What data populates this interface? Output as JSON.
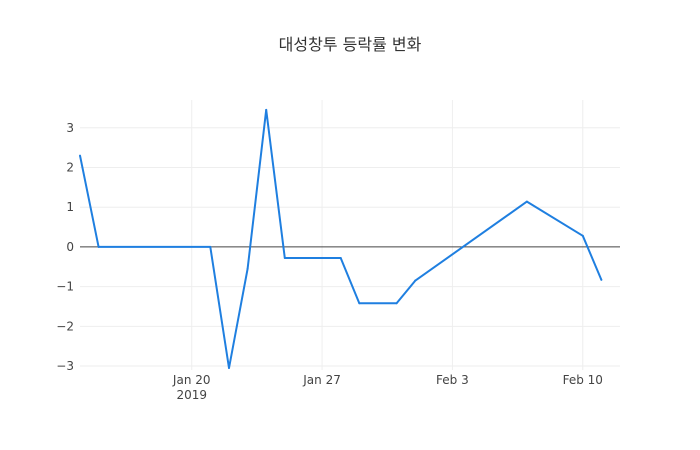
{
  "chart_data": {
    "type": "line",
    "title": "대성창투 등락률 변화",
    "xlabel": "",
    "ylabel": "",
    "xlim": [
      "2019-01-14",
      "2019-02-12"
    ],
    "ylim": [
      -3.1,
      3.7
    ],
    "grid": true,
    "zero_line": true,
    "x_ticks": [
      {
        "date": "2019-01-20",
        "label": "Jan 20",
        "sublabel": "2019"
      },
      {
        "date": "2019-01-27",
        "label": "Jan 27",
        "sublabel": ""
      },
      {
        "date": "2019-02-03",
        "label": "Feb 3",
        "sublabel": ""
      },
      {
        "date": "2019-02-10",
        "label": "Feb 10",
        "sublabel": ""
      }
    ],
    "y_ticks": [
      {
        "value": 3,
        "label": "3"
      },
      {
        "value": 2,
        "label": "2"
      },
      {
        "value": 1,
        "label": "1"
      },
      {
        "value": 0,
        "label": "0"
      },
      {
        "value": -1,
        "label": "−1"
      },
      {
        "value": -2,
        "label": "−2"
      },
      {
        "value": -3,
        "label": "−3"
      }
    ],
    "series": [
      {
        "color": "#1f7fe0",
        "points": [
          {
            "x": "2019-01-14",
            "y": 2.3
          },
          {
            "x": "2019-01-15",
            "y": 0.0
          },
          {
            "x": "2019-01-21",
            "y": 0.0
          },
          {
            "x": "2019-01-22",
            "y": -3.05
          },
          {
            "x": "2019-01-23",
            "y": -0.55
          },
          {
            "x": "2019-01-24",
            "y": 3.45
          },
          {
            "x": "2019-01-25",
            "y": -0.28
          },
          {
            "x": "2019-01-28",
            "y": -0.28
          },
          {
            "x": "2019-01-29",
            "y": -1.42
          },
          {
            "x": "2019-01-31",
            "y": -1.42
          },
          {
            "x": "2019-02-01",
            "y": -0.85
          },
          {
            "x": "2019-02-07",
            "y": 1.14
          },
          {
            "x": "2019-02-10",
            "y": 0.28
          },
          {
            "x": "2019-02-11",
            "y": -0.83
          }
        ]
      }
    ]
  }
}
